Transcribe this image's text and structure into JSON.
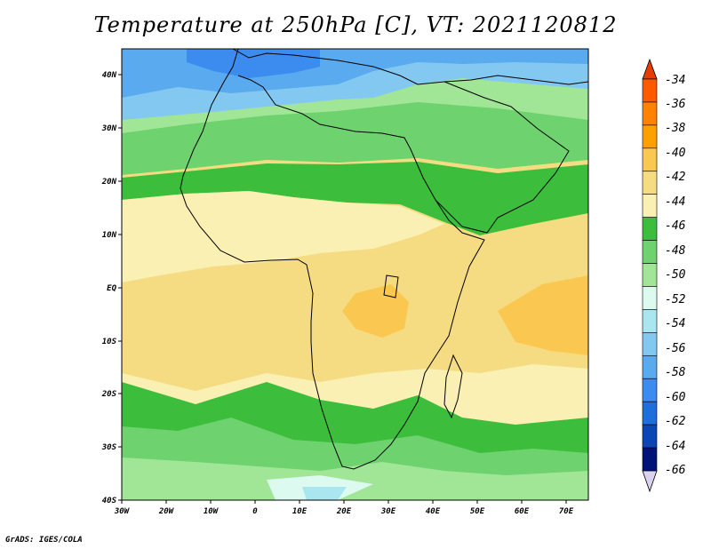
{
  "title": "Temperature at 250hPa [C], VT: 2021120812",
  "credit": "GrADS: IGES/COLA",
  "map": {
    "lat_labels": [
      "40N",
      "30N",
      "20N",
      "10N",
      "EQ",
      "10S",
      "20S",
      "30S",
      "40S"
    ],
    "lon_labels": [
      "30W",
      "20W",
      "10W",
      "0",
      "10E",
      "20E",
      "30E",
      "40E",
      "50E",
      "60E",
      "70E"
    ]
  },
  "colorbar": {
    "levels": [
      "-34",
      "-36",
      "-38",
      "-40",
      "-42",
      "-44",
      "-46",
      "-48",
      "-50",
      "-52",
      "-54",
      "-56",
      "-58",
      "-60",
      "-62",
      "-64",
      "-66"
    ],
    "colors": [
      "#ff5a00",
      "#ff8200",
      "#ffa000",
      "#fac850",
      "#f5dc82",
      "#faf0b4",
      "#3cbe3c",
      "#6ed26e",
      "#a0e696",
      "#dcfaf0",
      "#aae6f0",
      "#82c8f0",
      "#5aaaf0",
      "#3c8cf0",
      "#1e6edc",
      "#0a46b4",
      "#001478"
    ],
    "top_arrow_color": "#e63c00",
    "bottom_arrow_color": "#dcd2f0"
  }
}
